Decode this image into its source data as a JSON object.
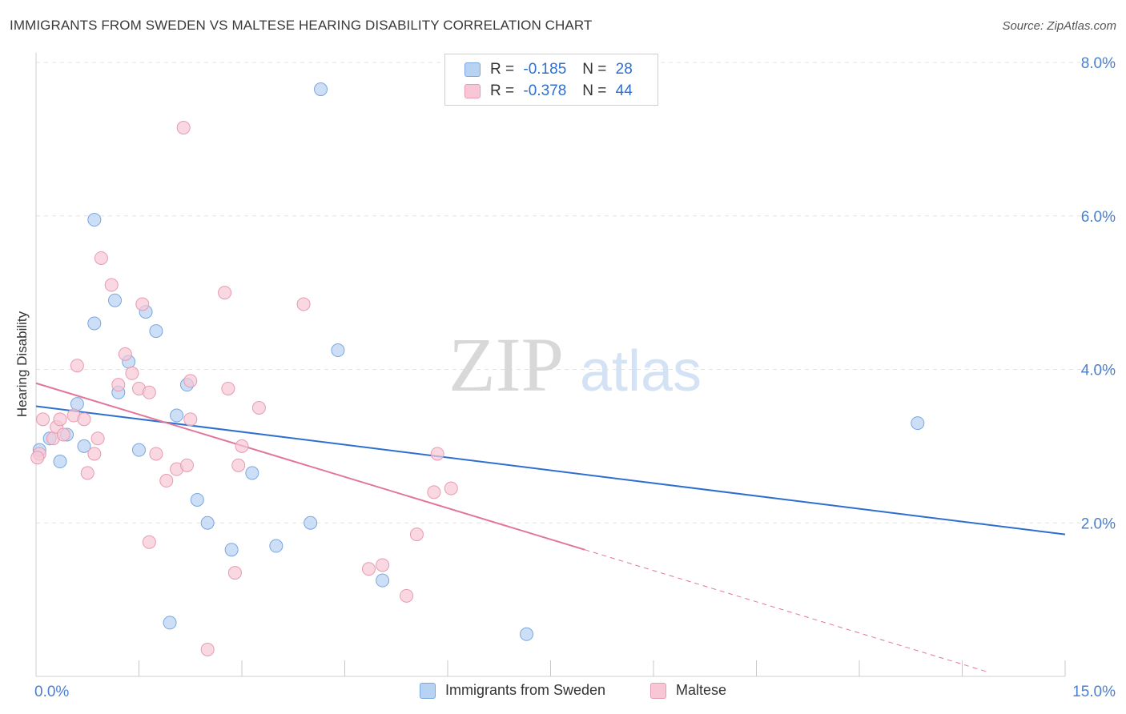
{
  "title": "IMMIGRANTS FROM SWEDEN VS MALTESE HEARING DISABILITY CORRELATION CHART",
  "source": "Source: ZipAtlas.com",
  "watermark": {
    "zip": "ZIP",
    "atlas": "atlas"
  },
  "stats": [
    {
      "r_label": "R =",
      "r_value": "-0.185",
      "n_label": "N =",
      "n_value": "28"
    },
    {
      "r_label": "R =",
      "r_value": "-0.378",
      "n_label": "N =",
      "n_value": "44"
    }
  ],
  "legend": [
    {
      "label": "Immigrants from Sweden"
    },
    {
      "label": "Maltese"
    }
  ],
  "colors": {
    "blue_fill": "#b8d2f3",
    "blue_stroke": "#7aa7e0",
    "blue_line": "#2d6fd0",
    "pink_fill": "#f7c7d5",
    "pink_stroke": "#e89ab2",
    "pink_line": "#e2769a",
    "axis_label": "#4a7fd1",
    "grid": "#e3e3e3"
  },
  "chart_data": {
    "type": "scatter",
    "title": "IMMIGRANTS FROM SWEDEN VS MALTESE HEARING DISABILITY CORRELATION CHART",
    "xlabel": "",
    "ylabel": "Hearing Disability",
    "xlim": [
      0,
      15
    ],
    "ylim": [
      0,
      8
    ],
    "x_tick_labels": [
      {
        "value": 0,
        "label": "0.0%"
      },
      {
        "value": 15,
        "label": "15.0%"
      }
    ],
    "y_tick_labels": [
      {
        "value": 2,
        "label": "2.0%"
      },
      {
        "value": 4,
        "label": "4.0%"
      },
      {
        "value": 6,
        "label": "6.0%"
      },
      {
        "value": 8,
        "label": "8.0%"
      }
    ],
    "grid": true,
    "legend_position": "bottom",
    "series": [
      {
        "name": "Immigrants from Sweden",
        "color": "blue",
        "points": [
          [
            0.05,
            2.95
          ],
          [
            0.2,
            3.1
          ],
          [
            0.35,
            2.8
          ],
          [
            0.45,
            3.15
          ],
          [
            0.6,
            3.55
          ],
          [
            0.7,
            3.0
          ],
          [
            0.85,
            5.95
          ],
          [
            0.85,
            4.6
          ],
          [
            1.15,
            4.9
          ],
          [
            1.2,
            3.7
          ],
          [
            1.35,
            4.1
          ],
          [
            1.5,
            2.95
          ],
          [
            1.6,
            4.75
          ],
          [
            1.75,
            4.5
          ],
          [
            1.95,
            0.7
          ],
          [
            2.05,
            3.4
          ],
          [
            2.2,
            3.8
          ],
          [
            2.35,
            2.3
          ],
          [
            2.5,
            2.0
          ],
          [
            2.85,
            1.65
          ],
          [
            3.15,
            2.65
          ],
          [
            3.5,
            1.7
          ],
          [
            4.0,
            2.0
          ],
          [
            4.15,
            7.65
          ],
          [
            4.4,
            4.25
          ],
          [
            5.05,
            1.25
          ],
          [
            7.15,
            0.55
          ],
          [
            12.85,
            3.3
          ]
        ],
        "trend": {
          "x": [
            0,
            15
          ],
          "y": [
            3.52,
            1.85
          ]
        }
      },
      {
        "name": "Maltese",
        "color": "pink",
        "points": [
          [
            0.05,
            2.9
          ],
          [
            0.1,
            3.35
          ],
          [
            0.25,
            3.1
          ],
          [
            0.3,
            3.25
          ],
          [
            0.35,
            3.35
          ],
          [
            0.4,
            3.15
          ],
          [
            0.55,
            3.4
          ],
          [
            0.6,
            4.05
          ],
          [
            0.7,
            3.35
          ],
          [
            0.75,
            2.65
          ],
          [
            0.85,
            2.9
          ],
          [
            0.9,
            3.1
          ],
          [
            0.95,
            5.45
          ],
          [
            1.1,
            5.1
          ],
          [
            1.2,
            3.8
          ],
          [
            1.3,
            4.2
          ],
          [
            1.4,
            3.95
          ],
          [
            1.5,
            3.75
          ],
          [
            1.55,
            4.85
          ],
          [
            1.65,
            3.7
          ],
          [
            1.65,
            1.75
          ],
          [
            1.75,
            2.9
          ],
          [
            1.9,
            2.55
          ],
          [
            2.05,
            2.7
          ],
          [
            2.2,
            2.75
          ],
          [
            2.15,
            7.15
          ],
          [
            2.25,
            3.35
          ],
          [
            2.25,
            3.85
          ],
          [
            2.5,
            0.35
          ],
          [
            2.75,
            5.0
          ],
          [
            2.8,
            3.75
          ],
          [
            2.9,
            1.35
          ],
          [
            2.95,
            2.75
          ],
          [
            3.0,
            3.0
          ],
          [
            3.25,
            3.5
          ],
          [
            3.9,
            4.85
          ],
          [
            4.85,
            1.4
          ],
          [
            5.05,
            1.45
          ],
          [
            5.4,
            1.05
          ],
          [
            5.55,
            1.85
          ],
          [
            5.8,
            2.4
          ],
          [
            5.85,
            2.9
          ],
          [
            6.05,
            2.45
          ],
          [
            0.02,
            2.85
          ]
        ],
        "trend": {
          "x": [
            0,
            8.0
          ],
          "y": [
            3.82,
            1.65
          ]
        },
        "trend_dashed": {
          "x": [
            8.0,
            13.9
          ],
          "y": [
            1.65,
            0.05
          ]
        }
      }
    ]
  }
}
